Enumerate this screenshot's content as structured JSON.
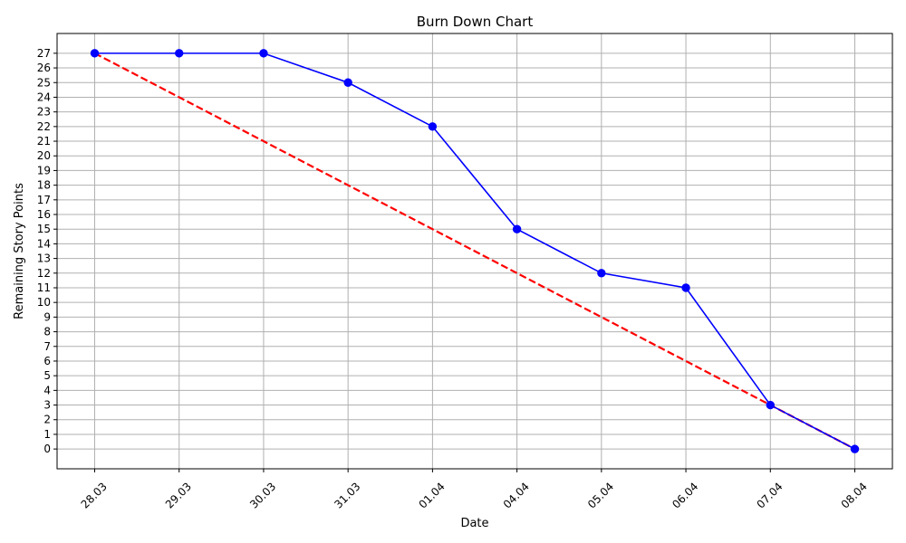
{
  "chart_data": {
    "type": "line",
    "title": "Burn Down Chart",
    "xlabel": "Date",
    "ylabel": "Remaining Story Points",
    "categories": [
      "28.03",
      "29.03",
      "30.03",
      "31.03",
      "01.04",
      "04.04",
      "05.04",
      "06.04",
      "07.04",
      "08.04"
    ],
    "yticks": [
      0,
      1,
      2,
      3,
      4,
      5,
      6,
      7,
      8,
      9,
      10,
      11,
      12,
      13,
      14,
      15,
      16,
      17,
      18,
      19,
      20,
      21,
      22,
      23,
      24,
      25,
      26,
      27
    ],
    "ylim": [
      -1.35,
      28.35
    ],
    "grid": true,
    "x_tick_rotation": 45,
    "series": [
      {
        "style": "actual",
        "color": "#0000ff",
        "marker": "circle",
        "line": "solid",
        "values": [
          27,
          27,
          27,
          25,
          22,
          15,
          12,
          11,
          3,
          0
        ]
      },
      {
        "style": "ideal",
        "color": "#ff0000",
        "marker": "none",
        "line": "dashed",
        "values": [
          27,
          24,
          21,
          18,
          15,
          12,
          9,
          6,
          3,
          0
        ]
      }
    ]
  }
}
